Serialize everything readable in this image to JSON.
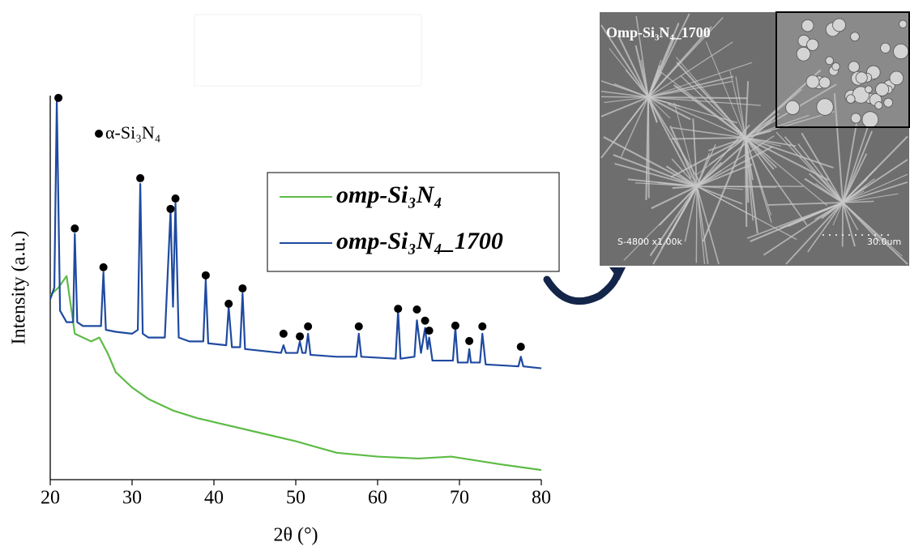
{
  "chart_data": {
    "type": "line",
    "x_label": "2θ (°)",
    "y_label": "Intensity (a.u.)",
    "xlim": [
      20,
      80
    ],
    "xticks": [
      20,
      30,
      40,
      50,
      60,
      70,
      80
    ],
    "ylim": [
      0,
      100
    ],
    "series": [
      {
        "name": "omp-Si₃N₄",
        "color": "#5dbb46",
        "x": [
          20,
          21,
          22,
          23,
          24,
          25,
          26,
          27,
          28,
          30,
          32,
          35,
          38,
          40,
          45,
          50,
          55,
          60,
          65,
          69,
          72,
          75,
          80
        ],
        "values": [
          48,
          50,
          53,
          38,
          37,
          36,
          37,
          33,
          28,
          24,
          21,
          18,
          16,
          15,
          12.5,
          10,
          7,
          6,
          5.5,
          6,
          5,
          4,
          2.5
        ]
      },
      {
        "name": "omp-Si₃N₄_1700",
        "color": "#1f4aa0",
        "x": [
          20,
          20.5,
          20.8,
          21.2,
          22,
          22.8,
          23,
          23.3,
          24,
          26.2,
          26.5,
          26.8,
          28,
          30,
          30.7,
          31,
          31.3,
          32,
          34,
          34.7,
          35,
          35.3,
          35.7,
          37,
          38.7,
          39,
          39.3,
          41.5,
          41.8,
          42.2,
          43.2,
          43.5,
          43.8,
          46,
          48.2,
          48.5,
          48.8,
          50.2,
          50.5,
          50.8,
          51.2,
          51.5,
          51.8,
          55,
          57.4,
          57.7,
          58,
          62.2,
          62.5,
          62.8,
          64.5,
          64.8,
          65.3,
          65.8,
          66.1,
          66.3,
          66.7,
          69.2,
          69.5,
          69.8,
          71,
          71.2,
          71.4,
          72.5,
          72.8,
          73.2,
          77.2,
          77.5,
          77.8,
          80
        ],
        "values": [
          47,
          50,
          98.5,
          44,
          41,
          41,
          64,
          41,
          40,
          40,
          54,
          39,
          38.5,
          38,
          39,
          77,
          38,
          37,
          37,
          70,
          45,
          72,
          37,
          36,
          36,
          52,
          35.5,
          35,
          45,
          34.5,
          34.5,
          48.5,
          34,
          33.5,
          33,
          35,
          33,
          33,
          36,
          33,
          33,
          38,
          32.5,
          32,
          32,
          38,
          32,
          31.5,
          44,
          31.5,
          32,
          41.5,
          33,
          39.5,
          34,
          37,
          31,
          31,
          39.5,
          30.5,
          30.5,
          34,
          30.5,
          30.5,
          38,
          30,
          29.5,
          32,
          29.5,
          29
        ]
      },
      {
        "name": "α-Si₃N₄",
        "color": "#000000",
        "style": "markers",
        "x": [
          21,
          23,
          26.5,
          31,
          34.7,
          35.3,
          39,
          41.8,
          43.5,
          48.5,
          50.5,
          51.5,
          57.7,
          62.5,
          64.8,
          65.8,
          66.3,
          69.5,
          71.2,
          72.8,
          77.5
        ],
        "values": [
          99.4,
          65.4,
          55.3,
          78.5,
          70.5,
          73.2,
          53.2,
          45.8,
          49.8,
          38,
          37.3,
          39.9,
          39.9,
          44.5,
          44.3,
          41.4,
          38.8,
          40.1,
          36.1,
          39.9,
          34.6
        ]
      }
    ]
  },
  "image": {
    "title": "Omp-Si₃N₄_1700",
    "caption": "S-4800 x1.00k",
    "scale_label": "30.0um"
  }
}
